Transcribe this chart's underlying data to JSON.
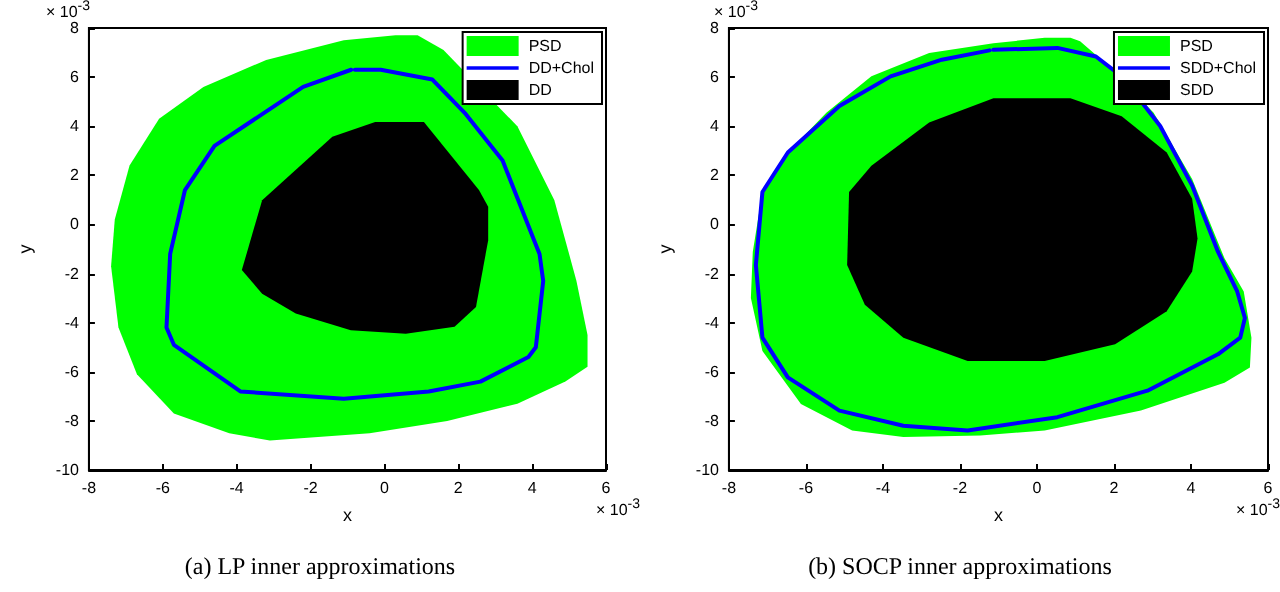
{
  "chart_data": [
    {
      "type": "area",
      "title": "(a) LP inner approximations",
      "xlabel": "x",
      "ylabel": "y",
      "xlim": [
        -8,
        6
      ],
      "ylim": [
        -10,
        8
      ],
      "xticks": [
        -8,
        -6,
        -4,
        -2,
        0,
        2,
        4,
        6
      ],
      "yticks": [
        -10,
        -8,
        -6,
        -4,
        -2,
        0,
        2,
        4,
        6,
        8
      ],
      "legend": "top right",
      "annotations": [
        "× 10$^{-3}$",
        "× 10$^{-3}$"
      ],
      "series": [
        {
          "name": "PSD",
          "color": "#00ff00",
          "x": [
            0.9,
            1.6,
            3.6,
            4.6,
            5.2,
            5.5,
            5.5,
            4.9,
            3.6,
            1.7,
            -0.4,
            -3.1,
            -4.2,
            -5.7,
            -6.7,
            -7.2,
            -7.4,
            -7.3,
            -6.9,
            -6.1,
            -4.9,
            -3.2,
            -1.1,
            0.3
          ],
          "values": [
            7.7,
            7.1,
            4.0,
            1.0,
            -2.3,
            -4.5,
            -5.8,
            -6.4,
            -7.3,
            -8.0,
            -8.5,
            -8.8,
            -8.5,
            -7.7,
            -6.1,
            -4.2,
            -1.7,
            0.2,
            2.4,
            4.3,
            5.6,
            6.7,
            7.5,
            7.7
          ]
        },
        {
          "name": "DD+Chol",
          "type": "line",
          "color": "#0000ff",
          "x": [
            -0.8,
            -0.1,
            1.3,
            2.2,
            3.2,
            4.2,
            4.3,
            4.1,
            3.9,
            2.6,
            1.2,
            -1.1,
            -3.9,
            -5.7,
            -5.9,
            -5.8,
            -5.4,
            -4.6,
            -3.7,
            -2.2,
            -0.9
          ],
          "values": [
            6.3,
            6.3,
            5.9,
            4.5,
            2.6,
            -1.2,
            -2.3,
            -5.0,
            -5.4,
            -6.4,
            -6.8,
            -7.1,
            -6.8,
            -4.9,
            -4.2,
            -1.2,
            1.4,
            3.2,
            4.1,
            5.6,
            6.3
          ]
        },
        {
          "name": "DD",
          "color": "#000000",
          "x": [
            -0.25,
            1.07,
            2.56,
            2.81,
            2.81,
            2.48,
            1.9,
            0.58,
            -0.91,
            -2.4,
            -3.31,
            -3.86,
            -3.31,
            -1.41
          ],
          "values": [
            4.17,
            4.17,
            1.4,
            0.72,
            -0.64,
            -3.36,
            -4.17,
            -4.45,
            -4.31,
            -3.63,
            -2.82,
            -1.86,
            0.99,
            3.57
          ]
        }
      ]
    },
    {
      "type": "area",
      "title": "(b) SOCP inner approximations",
      "xlabel": "x",
      "ylabel": "y",
      "xlim": [
        -8,
        6
      ],
      "ylim": [
        -10,
        8
      ],
      "xticks": [
        -8,
        -6,
        -4,
        -2,
        0,
        2,
        4,
        6
      ],
      "yticks": [
        -10,
        -8,
        -6,
        -4,
        -2,
        0,
        2,
        4,
        6,
        8
      ],
      "legend": "top right",
      "annotations": [
        "× 10$^{-3}$",
        "× 10$^{-3}$"
      ],
      "series": [
        {
          "name": "PSD",
          "color": "#00ff00",
          "x": [
            0.87,
            1.12,
            1.87,
            3.03,
            4.03,
            4.87,
            5.37,
            5.57,
            5.53,
            4.87,
            2.7,
            0.2,
            -1.47,
            -3.47,
            -4.8,
            -6.13,
            -7.13,
            -7.43,
            -7.38,
            -7.13,
            -6.47,
            -5.47,
            -4.3,
            -2.8,
            -1.13,
            0.2
          ],
          "values": [
            7.6,
            7.46,
            6.44,
            4.55,
            1.85,
            -1.38,
            -2.73,
            -4.61,
            -5.83,
            -6.45,
            -7.58,
            -8.39,
            -8.6,
            -8.66,
            -8.39,
            -7.31,
            -5.15,
            -3.0,
            -1.11,
            1.32,
            2.93,
            4.55,
            6.03,
            6.98,
            7.38,
            7.6
          ]
        },
        {
          "name": "SDD+Chol",
          "type": "line",
          "color": "#0000ff",
          "x": [
            -1.13,
            0.53,
            1.53,
            2.2,
            3.2,
            4.03,
            4.7,
            5.2,
            5.4,
            5.28,
            4.7,
            2.87,
            0.53,
            -1.8,
            -3.47,
            -5.13,
            -6.47,
            -7.13,
            -7.3,
            -7.13,
            -6.47,
            -5.13,
            -3.8,
            -2.47,
            -1.23
          ],
          "values": [
            7.11,
            7.19,
            6.84,
            6.03,
            4.01,
            1.58,
            -1.11,
            -2.73,
            -3.81,
            -4.61,
            -5.29,
            -6.77,
            -7.85,
            -8.39,
            -8.2,
            -7.58,
            -6.23,
            -4.61,
            -1.65,
            1.32,
            2.93,
            4.82,
            6.03,
            6.71,
            7.09
          ]
        },
        {
          "name": "SDD",
          "color": "#000000",
          "x": [
            -1.13,
            0.87,
            2.2,
            3.37,
            4.03,
            4.17,
            4.03,
            3.37,
            2.03,
            0.2,
            -1.8,
            -3.47,
            -4.47,
            -4.93,
            -4.88,
            -4.3,
            -2.8
          ],
          "values": [
            5.14,
            5.14,
            4.41,
            2.93,
            1.05,
            -0.57,
            -1.92,
            -3.54,
            -4.88,
            -5.56,
            -5.56,
            -4.61,
            -3.27,
            -1.65,
            1.32,
            2.39,
            4.15
          ]
        }
      ]
    }
  ]
}
